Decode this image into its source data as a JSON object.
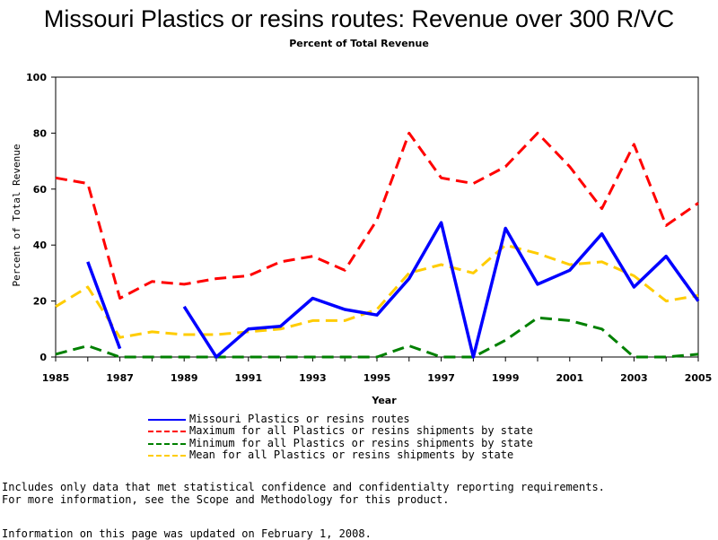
{
  "chart_data": {
    "type": "line",
    "title": "Missouri Plastics or resins routes: Revenue over 300 R/VC",
    "subtitle": "Percent of Total Revenue",
    "xlabel": "Year",
    "ylabel": "Percent of Total Revenue",
    "xlim": [
      1985,
      2005
    ],
    "ylim": [
      0,
      100
    ],
    "x_ticks": [
      "1985",
      "1987",
      "1989",
      "1991",
      "1993",
      "1995",
      "1997",
      "1999",
      "2001",
      "2003",
      "2005"
    ],
    "y_ticks": [
      "0",
      "20",
      "40",
      "60",
      "80",
      "100"
    ],
    "grid": false,
    "legend_position": "bottom",
    "x": [
      1985,
      1986,
      1987,
      1988,
      1989,
      1990,
      1991,
      1992,
      1993,
      1994,
      1995,
      1996,
      1997,
      1998,
      1999,
      2000,
      2001,
      2002,
      2003,
      2004,
      2005
    ],
    "series": [
      {
        "name": "Missouri Plastics or resins routes",
        "color": "#0000ff",
        "style": "solid",
        "values": [
          null,
          34,
          3,
          null,
          18,
          0,
          10,
          11,
          21,
          17,
          15,
          28,
          48,
          0,
          46,
          26,
          31,
          44,
          25,
          36,
          20
        ]
      },
      {
        "name": "Maximum for all Plastics or resins shipments by state",
        "color": "#ff0000",
        "style": "dashed",
        "values": [
          64,
          62,
          21,
          27,
          26,
          28,
          29,
          34,
          36,
          31,
          49,
          80,
          64,
          62,
          68,
          80,
          68,
          53,
          76,
          47,
          55
        ]
      },
      {
        "name": "Minimum for all Plastics or resins shipments by state",
        "color": "#008000",
        "style": "dashed",
        "values": [
          1,
          4,
          0,
          0,
          0,
          0,
          0,
          0,
          0,
          0,
          0,
          4,
          0,
          0,
          6,
          14,
          13,
          10,
          0,
          0,
          1
        ]
      },
      {
        "name": "Mean for all Plastics or resins shipments by state",
        "color": "#ffcc00",
        "style": "dashed",
        "values": [
          18,
          25,
          7,
          9,
          8,
          8,
          9,
          10,
          13,
          13,
          17,
          30,
          33,
          30,
          40,
          37,
          33,
          34,
          29,
          20,
          22
        ]
      }
    ]
  },
  "notes": {
    "line1": "Includes only data that met statistical confidence and confidentialty reporting requirements.",
    "line2": "For more information, see the Scope and Methodology for this product.",
    "updated": "Information on this page was updated on February 1, 2008."
  }
}
